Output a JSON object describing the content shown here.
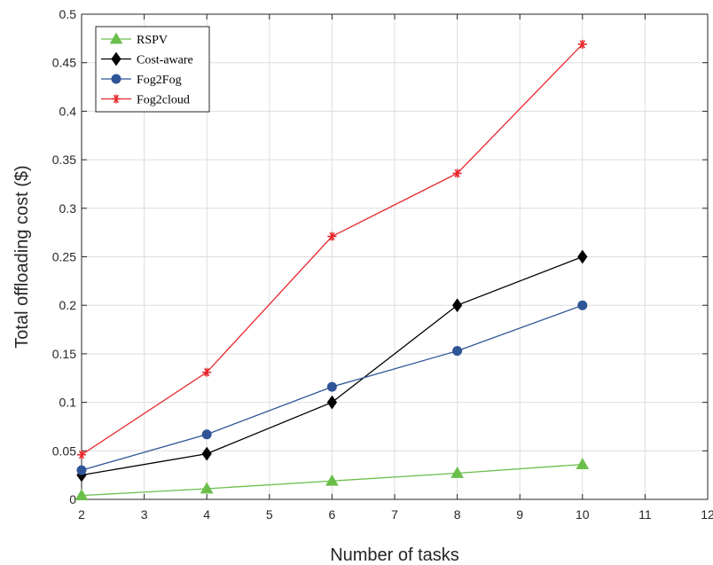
{
  "chart_data": {
    "type": "line",
    "title": "",
    "xlabel": "Number of tasks",
    "ylabel": "Total offloading cost ($)",
    "xlim": [
      2,
      12
    ],
    "ylim": [
      0,
      0.5
    ],
    "xticks": [
      2,
      3,
      4,
      5,
      6,
      7,
      8,
      9,
      10,
      11,
      12
    ],
    "yticks": [
      0,
      0.05,
      0.1,
      0.15,
      0.2,
      0.25,
      0.3,
      0.35,
      0.4,
      0.45,
      0.5
    ],
    "xtick_labels": [
      "2",
      "3",
      "4",
      "5",
      "6",
      "7",
      "8",
      "9",
      "10",
      "11",
      "12"
    ],
    "ytick_labels": [
      "0",
      "0.05",
      "0.1",
      "0.15",
      "0.2",
      "0.25",
      "0.3",
      "0.35",
      "0.4",
      "0.45",
      "0.5"
    ],
    "grid": true,
    "legend_position": "top-left",
    "x": [
      2,
      4,
      6,
      8,
      10
    ],
    "series": [
      {
        "name": "RSPV",
        "values": [
          0.004,
          0.011,
          0.019,
          0.027,
          0.036
        ],
        "color": "#6abf4b",
        "marker": "triangle"
      },
      {
        "name": "Cost-aware",
        "values": [
          0.025,
          0.047,
          0.1,
          0.2,
          0.25
        ],
        "color": "#000000",
        "marker": "diamond"
      },
      {
        "name": "Fog2Fog",
        "values": [
          0.03,
          0.067,
          0.116,
          0.153,
          0.2
        ],
        "color": "#2f5597",
        "marker": "circle"
      },
      {
        "name": "Fog2cloud",
        "values": [
          0.046,
          0.131,
          0.271,
          0.336,
          0.469
        ],
        "color": "#e8262b",
        "marker": "star"
      }
    ]
  }
}
